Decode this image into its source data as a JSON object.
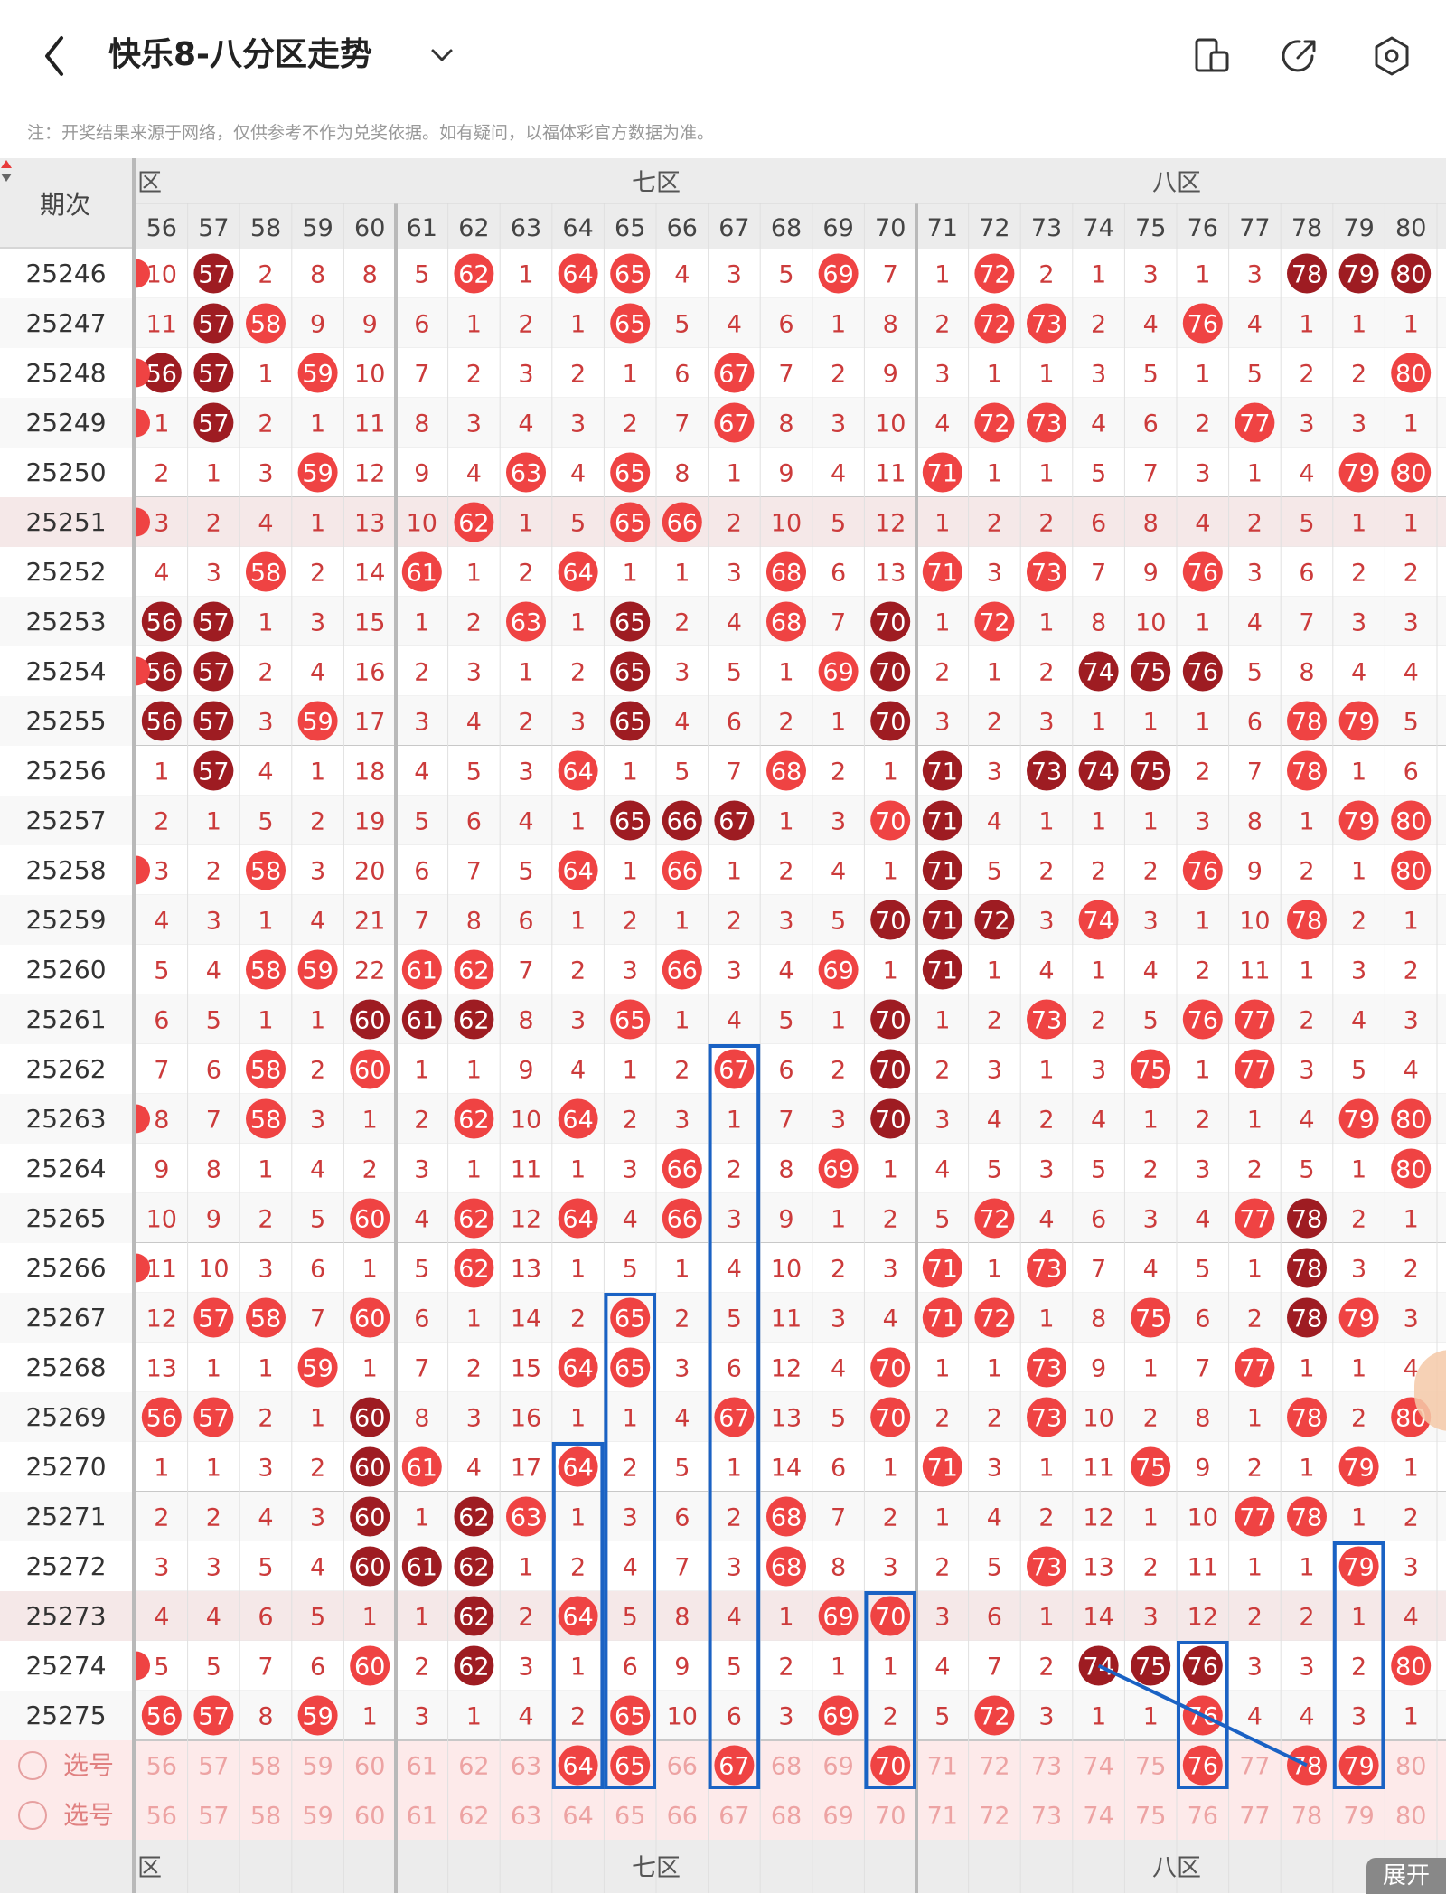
{
  "header": {
    "title": "快乐8-八分区走势",
    "note": "注：开奖结果来源于网络，仅供参考不作为兑奖依据。如有疑问，以福体彩官方数据为准。"
  },
  "table": {
    "issue_header": "期次",
    "zones": [
      {
        "label": "六区",
        "shown": "区"
      },
      {
        "label": "七区",
        "shown": "七区"
      },
      {
        "label": "八区",
        "shown": "八区"
      }
    ],
    "columns": [
      56,
      57,
      58,
      59,
      60,
      61,
      62,
      63,
      64,
      65,
      66,
      67,
      68,
      69,
      70,
      71,
      72,
      73,
      74,
      75,
      76,
      77,
      78,
      79,
      80
    ],
    "rows": [
      {
        "issue": "25246",
        "values": [
          10,
          57,
          2,
          8,
          8,
          5,
          62,
          1,
          64,
          65,
          4,
          3,
          5,
          69,
          7,
          1,
          72,
          2,
          1,
          3,
          1,
          3,
          78,
          79,
          80
        ]
      },
      {
        "issue": "25247",
        "values": [
          11,
          57,
          58,
          9,
          9,
          6,
          1,
          2,
          1,
          65,
          5,
          4,
          6,
          1,
          8,
          2,
          72,
          73,
          2,
          4,
          76,
          4,
          1,
          1,
          1
        ]
      },
      {
        "issue": "25248",
        "values": [
          56,
          57,
          1,
          59,
          10,
          7,
          2,
          3,
          2,
          1,
          6,
          67,
          7,
          2,
          9,
          3,
          1,
          1,
          3,
          5,
          1,
          5,
          2,
          2,
          80
        ]
      },
      {
        "issue": "25249",
        "values": [
          1,
          57,
          2,
          1,
          11,
          8,
          3,
          4,
          3,
          2,
          7,
          67,
          8,
          3,
          10,
          4,
          72,
          73,
          4,
          6,
          2,
          77,
          3,
          3,
          1
        ]
      },
      {
        "issue": "25250",
        "values": [
          2,
          1,
          3,
          59,
          12,
          9,
          4,
          63,
          4,
          65,
          8,
          1,
          9,
          4,
          11,
          71,
          1,
          1,
          5,
          7,
          3,
          1,
          4,
          79,
          80
        ]
      },
      {
        "issue": "25251",
        "values": [
          3,
          2,
          4,
          1,
          13,
          10,
          62,
          1,
          5,
          65,
          66,
          2,
          10,
          5,
          12,
          1,
          2,
          2,
          6,
          8,
          4,
          2,
          5,
          1,
          1
        ]
      },
      {
        "issue": "25252",
        "values": [
          4,
          3,
          58,
          2,
          14,
          61,
          1,
          2,
          64,
          1,
          1,
          3,
          68,
          6,
          13,
          71,
          3,
          73,
          7,
          9,
          76,
          3,
          6,
          2,
          2
        ]
      },
      {
        "issue": "25253",
        "values": [
          56,
          57,
          1,
          3,
          15,
          1,
          2,
          63,
          1,
          65,
          2,
          4,
          68,
          7,
          70,
          1,
          72,
          1,
          8,
          10,
          1,
          4,
          7,
          3,
          3
        ]
      },
      {
        "issue": "25254",
        "values": [
          56,
          57,
          2,
          4,
          16,
          2,
          3,
          1,
          2,
          65,
          3,
          5,
          1,
          69,
          70,
          2,
          1,
          2,
          74,
          75,
          76,
          5,
          8,
          4,
          4
        ]
      },
      {
        "issue": "25255",
        "values": [
          56,
          57,
          3,
          59,
          17,
          3,
          4,
          2,
          3,
          65,
          4,
          6,
          2,
          1,
          70,
          3,
          2,
          3,
          1,
          1,
          1,
          6,
          78,
          79,
          5
        ]
      },
      {
        "issue": "25256",
        "values": [
          1,
          57,
          4,
          1,
          18,
          4,
          5,
          3,
          64,
          1,
          5,
          7,
          68,
          2,
          1,
          71,
          3,
          73,
          74,
          75,
          2,
          7,
          78,
          1,
          6
        ]
      },
      {
        "issue": "25257",
        "values": [
          2,
          1,
          5,
          2,
          19,
          5,
          6,
          4,
          1,
          65,
          66,
          67,
          1,
          3,
          70,
          71,
          4,
          1,
          1,
          1,
          3,
          8,
          1,
          79,
          80
        ]
      },
      {
        "issue": "25258",
        "values": [
          3,
          2,
          58,
          3,
          20,
          6,
          7,
          5,
          64,
          1,
          66,
          1,
          2,
          4,
          1,
          71,
          5,
          2,
          2,
          2,
          76,
          9,
          2,
          1,
          80
        ]
      },
      {
        "issue": "25259",
        "values": [
          4,
          3,
          1,
          4,
          21,
          7,
          8,
          6,
          1,
          2,
          1,
          2,
          3,
          5,
          70,
          71,
          72,
          3,
          74,
          3,
          1,
          10,
          78,
          2,
          1
        ]
      },
      {
        "issue": "25260",
        "values": [
          5,
          4,
          58,
          59,
          22,
          61,
          62,
          7,
          2,
          3,
          66,
          3,
          4,
          69,
          1,
          71,
          1,
          4,
          1,
          4,
          2,
          11,
          1,
          3,
          2
        ]
      },
      {
        "issue": "25261",
        "values": [
          6,
          5,
          1,
          1,
          60,
          61,
          62,
          8,
          3,
          65,
          1,
          4,
          5,
          1,
          70,
          1,
          2,
          73,
          2,
          5,
          76,
          77,
          2,
          4,
          3
        ]
      },
      {
        "issue": "25262",
        "values": [
          7,
          6,
          58,
          2,
          60,
          1,
          1,
          9,
          4,
          1,
          2,
          67,
          6,
          2,
          70,
          2,
          3,
          1,
          3,
          75,
          1,
          77,
          3,
          5,
          4
        ]
      },
      {
        "issue": "25263",
        "values": [
          8,
          7,
          58,
          3,
          1,
          2,
          62,
          10,
          64,
          2,
          3,
          1,
          7,
          3,
          70,
          3,
          4,
          2,
          4,
          1,
          2,
          1,
          4,
          79,
          80
        ]
      },
      {
        "issue": "25264",
        "values": [
          9,
          8,
          1,
          4,
          2,
          3,
          1,
          11,
          1,
          3,
          66,
          2,
          8,
          69,
          1,
          4,
          5,
          3,
          5,
          2,
          3,
          2,
          5,
          1,
          80
        ]
      },
      {
        "issue": "25265",
        "values": [
          10,
          9,
          2,
          5,
          60,
          4,
          62,
          12,
          64,
          4,
          66,
          3,
          9,
          1,
          2,
          5,
          72,
          4,
          6,
          3,
          4,
          77,
          78,
          2,
          1
        ]
      },
      {
        "issue": "25266",
        "values": [
          11,
          10,
          3,
          6,
          1,
          5,
          62,
          13,
          1,
          5,
          1,
          4,
          10,
          2,
          3,
          71,
          1,
          73,
          7,
          4,
          5,
          1,
          78,
          3,
          2
        ]
      },
      {
        "issue": "25267",
        "values": [
          12,
          57,
          58,
          7,
          60,
          6,
          1,
          14,
          2,
          65,
          2,
          5,
          11,
          3,
          4,
          71,
          72,
          1,
          8,
          75,
          6,
          2,
          78,
          79,
          3
        ]
      },
      {
        "issue": "25268",
        "values": [
          13,
          1,
          1,
          59,
          1,
          7,
          2,
          15,
          64,
          65,
          3,
          6,
          12,
          4,
          70,
          1,
          1,
          73,
          9,
          1,
          7,
          77,
          1,
          1,
          4
        ]
      },
      {
        "issue": "25269",
        "values": [
          56,
          57,
          2,
          1,
          60,
          8,
          3,
          16,
          1,
          1,
          4,
          67,
          13,
          5,
          70,
          2,
          2,
          73,
          10,
          2,
          8,
          1,
          78,
          2,
          80
        ]
      },
      {
        "issue": "25270",
        "values": [
          1,
          1,
          3,
          2,
          60,
          61,
          4,
          17,
          64,
          2,
          5,
          1,
          14,
          6,
          1,
          71,
          3,
          1,
          11,
          75,
          9,
          2,
          1,
          79,
          1
        ]
      },
      {
        "issue": "25271",
        "values": [
          2,
          2,
          4,
          3,
          60,
          1,
          62,
          63,
          1,
          3,
          6,
          2,
          68,
          7,
          2,
          1,
          4,
          2,
          12,
          1,
          10,
          77,
          78,
          1,
          2
        ]
      },
      {
        "issue": "25272",
        "values": [
          3,
          3,
          5,
          4,
          60,
          61,
          62,
          1,
          2,
          4,
          7,
          3,
          68,
          8,
          3,
          2,
          5,
          73,
          13,
          2,
          11,
          1,
          1,
          79,
          3
        ]
      },
      {
        "issue": "25273",
        "values": [
          4,
          4,
          6,
          5,
          1,
          1,
          62,
          2,
          64,
          5,
          8,
          4,
          1,
          69,
          70,
          3,
          6,
          1,
          14,
          3,
          12,
          2,
          2,
          1,
          4
        ]
      },
      {
        "issue": "25274",
        "values": [
          5,
          5,
          7,
          6,
          60,
          2,
          62,
          3,
          1,
          6,
          9,
          5,
          2,
          1,
          1,
          4,
          7,
          2,
          74,
          75,
          76,
          3,
          3,
          2,
          80
        ]
      },
      {
        "issue": "25275",
        "values": [
          56,
          57,
          8,
          59,
          1,
          3,
          1,
          4,
          2,
          65,
          10,
          6,
          3,
          69,
          2,
          5,
          72,
          3,
          1,
          1,
          76,
          4,
          4,
          3,
          1
        ]
      }
    ],
    "dark_hits": {
      "25246": [
        57,
        78,
        79,
        80
      ],
      "25247": [
        57
      ],
      "25248": [
        56,
        57
      ],
      "25249": [
        57
      ],
      "25253": [
        56,
        57,
        65,
        70
      ],
      "25254": [
        56,
        57,
        65,
        70,
        74,
        75,
        76
      ],
      "25255": [
        56,
        57,
        65,
        70
      ],
      "25256": [
        57,
        71,
        73,
        74,
        75
      ],
      "25257": [
        65,
        66,
        67,
        71
      ],
      "25258": [
        71
      ],
      "25259": [
        70,
        71,
        72
      ],
      "25260": [
        71
      ],
      "25261": [
        60,
        61,
        62,
        70
      ],
      "25262": [
        70
      ],
      "25263": [
        70
      ],
      "25265": [
        78
      ],
      "25266": [
        78
      ],
      "25267": [
        78
      ],
      "25269": [
        60
      ],
      "25270": [
        60
      ],
      "25271": [
        60,
        62
      ],
      "25272": [
        60,
        61,
        62
      ],
      "25273": [
        62
      ],
      "25274": [
        62,
        74,
        75,
        76
      ]
    },
    "pick_rows": [
      {
        "label": "选号",
        "selected": [
          64,
          65,
          67,
          70,
          76,
          78,
          79
        ]
      },
      {
        "label": "选号",
        "selected": []
      }
    ],
    "left_edge_marks": [
      "25246",
      "25248",
      "25249",
      "25251",
      "25254",
      "25258",
      "25263",
      "25266",
      "25274"
    ]
  },
  "bottom": {
    "expand_label": "展开"
  },
  "colors": {
    "ball_red": "#ef4343",
    "ball_dark": "#9e1c22",
    "miss_text": "#cc3b3b",
    "annotation_blue": "#1a62c4"
  },
  "icons": [
    "back-arrow-icon",
    "chevron-down-icon",
    "device-icon",
    "share-icon",
    "settings-icon",
    "sort-arrows-icon",
    "radio-icon"
  ]
}
